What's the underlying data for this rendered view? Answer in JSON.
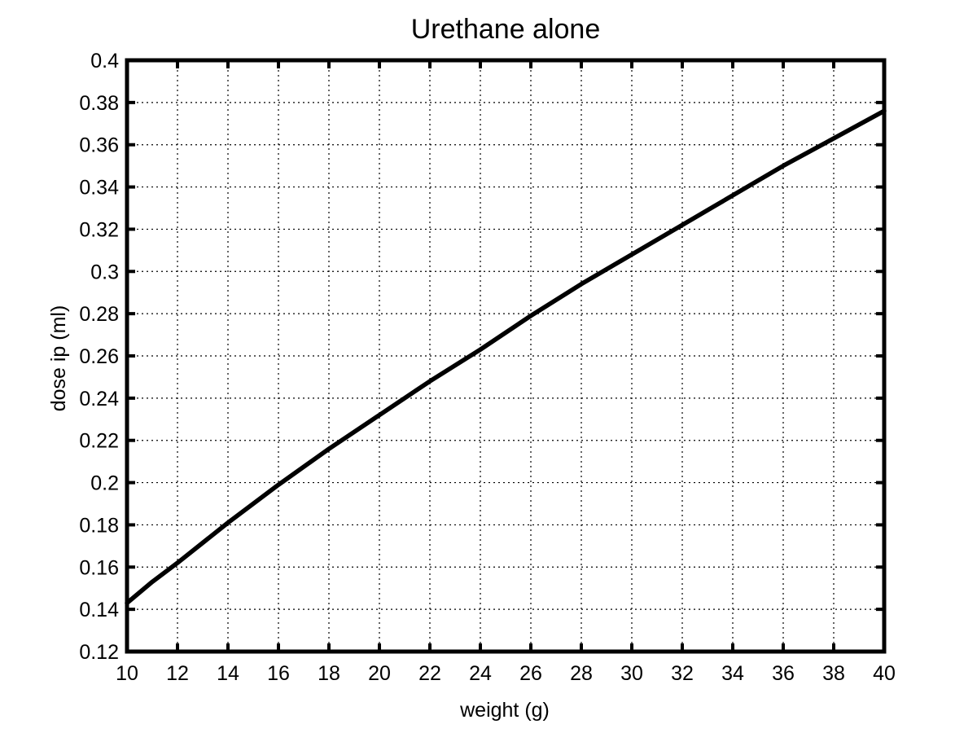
{
  "chart_data": {
    "type": "line",
    "title": "Urethane alone",
    "xlabel": "weight (g)",
    "ylabel": "dose ip (ml)",
    "xlim": [
      10,
      40
    ],
    "ylim": [
      0.12,
      0.4
    ],
    "grid": true,
    "x_ticks": [
      10,
      12,
      14,
      16,
      18,
      20,
      22,
      24,
      26,
      28,
      30,
      32,
      34,
      36,
      38,
      40
    ],
    "y_ticks": [
      0.12,
      0.14,
      0.16,
      0.18,
      0.2,
      0.22,
      0.24,
      0.26,
      0.28,
      0.3,
      0.32,
      0.34,
      0.36,
      0.38,
      0.4
    ],
    "x_tick_labels": [
      "10",
      "12",
      "14",
      "16",
      "18",
      "20",
      "22",
      "24",
      "26",
      "28",
      "30",
      "32",
      "34",
      "36",
      "38",
      "40"
    ],
    "y_tick_labels": [
      "0.12",
      "0.14",
      "0.16",
      "0.18",
      "0.2",
      "0.22",
      "0.24",
      "0.26",
      "0.28",
      "0.3",
      "0.32",
      "0.34",
      "0.36",
      "0.38",
      "0.4"
    ],
    "series": [
      {
        "x": [
          10,
          11,
          12,
          14,
          16,
          18,
          20,
          22,
          24,
          26,
          28,
          30,
          32,
          34,
          36,
          38,
          40
        ],
        "y": [
          0.143,
          0.153,
          0.162,
          0.181,
          0.199,
          0.216,
          0.232,
          0.248,
          0.263,
          0.279,
          0.294,
          0.308,
          0.322,
          0.336,
          0.35,
          0.363,
          0.376
        ]
      }
    ]
  }
}
